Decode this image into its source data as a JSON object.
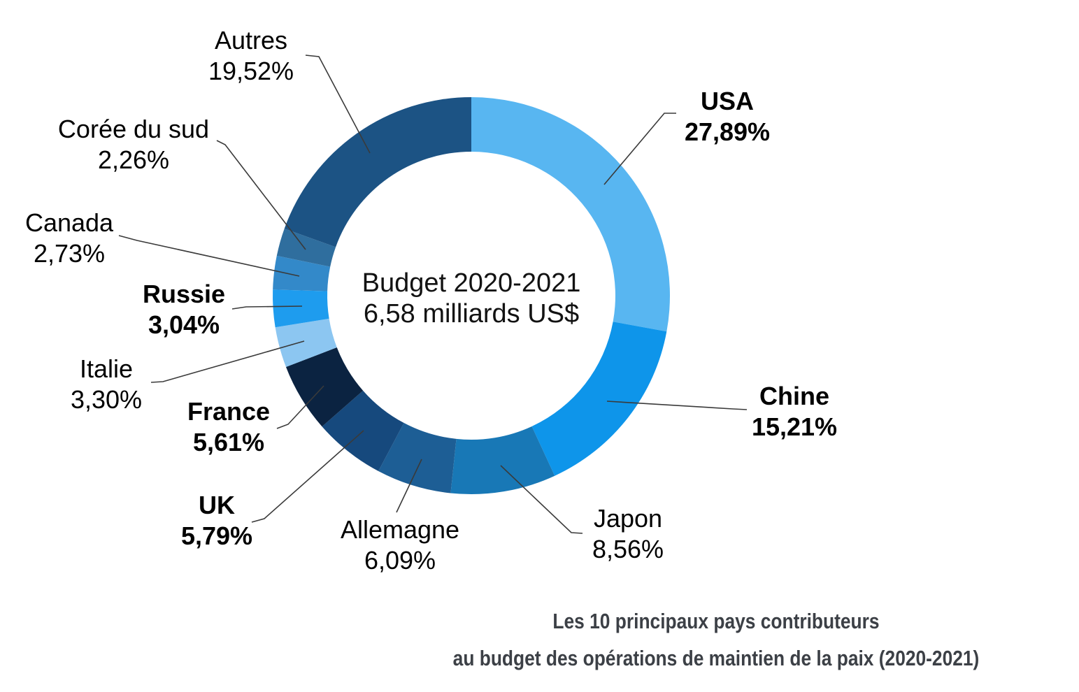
{
  "chart_data": {
    "type": "pie",
    "subtype": "donut",
    "center_label": [
      "Budget 2020-2021",
      "6,58 milliards US$"
    ],
    "caption": [
      "Les 10 principaux pays contributeurs",
      "au budget des opérations de maintien de la paix (2020-2021)"
    ],
    "start_angle_deg": 0,
    "direction": "clockwise",
    "legend_position": "none",
    "leader_line_color": "#3a3a3a",
    "slices": [
      {
        "name": "USA",
        "value": 27.89,
        "pct_label": "27,89%",
        "color": "#58B6F1",
        "emphasis": true
      },
      {
        "name": "Chine",
        "value": 15.21,
        "pct_label": "15,21%",
        "color": "#0E95EA",
        "emphasis": true
      },
      {
        "name": "Japon",
        "value": 8.56,
        "pct_label": "8,56%",
        "color": "#1878B6",
        "emphasis": false
      },
      {
        "name": "Allemagne",
        "value": 6.09,
        "pct_label": "6,09%",
        "color": "#1D5E95",
        "emphasis": false
      },
      {
        "name": "UK",
        "value": 5.79,
        "pct_label": "5,79%",
        "color": "#16497D",
        "emphasis": true
      },
      {
        "name": "France",
        "value": 5.61,
        "pct_label": "5,61%",
        "color": "#0B2341",
        "emphasis": true
      },
      {
        "name": "Italie",
        "value": 3.3,
        "pct_label": "3,30%",
        "color": "#8CC6F1",
        "emphasis": false
      },
      {
        "name": "Russie",
        "value": 3.04,
        "pct_label": "3,04%",
        "color": "#1E9CEE",
        "emphasis": true
      },
      {
        "name": "Canada",
        "value": 2.73,
        "pct_label": "2,73%",
        "color": "#3389C9",
        "emphasis": false
      },
      {
        "name": "Corée du sud",
        "value": 2.26,
        "pct_label": "2,26%",
        "color": "#2F6E9E",
        "emphasis": false
      },
      {
        "name": "Autres",
        "value": 19.52,
        "pct_label": "19,52%",
        "color": "#1C5384",
        "emphasis": false
      }
    ]
  }
}
